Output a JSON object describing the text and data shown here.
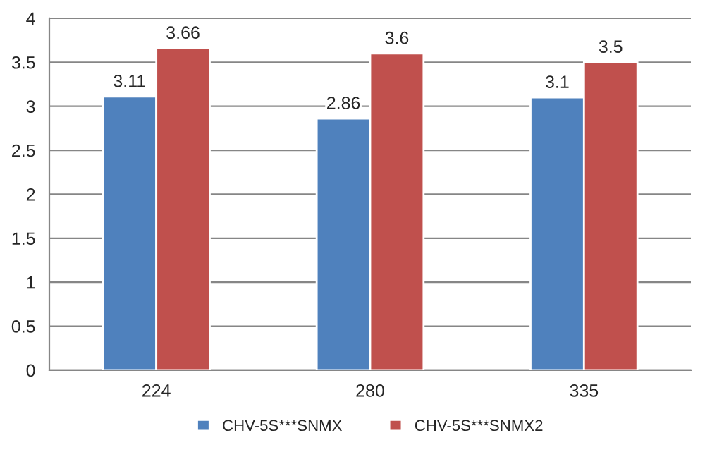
{
  "chart_data": {
    "type": "bar",
    "categories": [
      "224",
      "280",
      "335"
    ],
    "series": [
      {
        "name": "CHV-5S***SNMX",
        "color": "#4f81bd",
        "values": [
          3.11,
          2.86,
          3.1
        ]
      },
      {
        "name": "CHV-5S***SNMX2",
        "color": "#c0504d",
        "values": [
          3.66,
          3.6,
          3.5
        ]
      }
    ],
    "ylim": [
      0,
      4
    ],
    "yticks": [
      0,
      0.5,
      1,
      1.5,
      2,
      2.5,
      3,
      3.5,
      4
    ],
    "grid": "y",
    "legend": "bottom",
    "data_labels": true
  }
}
